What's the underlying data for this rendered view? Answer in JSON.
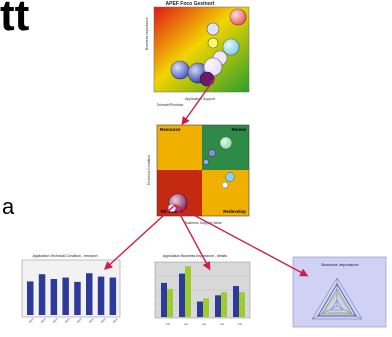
{
  "heading_fragment": "tt",
  "side_fragment": "a",
  "scatter_panel": {
    "title": "APEF Foco Gestnort",
    "colors": {
      "bg_top": "#e01818",
      "bg_mid": "#f2d400",
      "bg_bottom": "#2aa02a"
    }
  },
  "quadrant_panel": {
    "quadrants": [
      {
        "label": "Resource",
        "color": "#f0b000"
      },
      {
        "label": "Renew",
        "color": "#2e8a46"
      },
      {
        "label": "Tolerate",
        "color": "#c42a10"
      },
      {
        "label": "Redevelop",
        "color": "#f0b000"
      }
    ]
  },
  "bar_panel_left": {
    "title": "Application Technical Condition - research",
    "values": [
      7.0,
      8.5,
      7.5,
      7.8,
      6.9,
      8.7,
      8.0,
      7.8
    ],
    "colors": {
      "bar": "#2e3a9a"
    }
  },
  "bar_panel_middle": {
    "title": "Application Business Importance - details",
    "series_a": [
      5.5,
      7.0,
      2.5,
      3.5,
      5.0
    ],
    "series_b": [
      4.5,
      8.2,
      3.0,
      4.0,
      4.0
    ],
    "colors": {
      "a": "#2e3a9a",
      "b": "#9ccc30"
    }
  },
  "radar_panel": {
    "title": "Business Importance",
    "colors": {
      "bg": "#cfd2f4"
    }
  },
  "connectors": {
    "color": "#cc1f4a"
  }
}
